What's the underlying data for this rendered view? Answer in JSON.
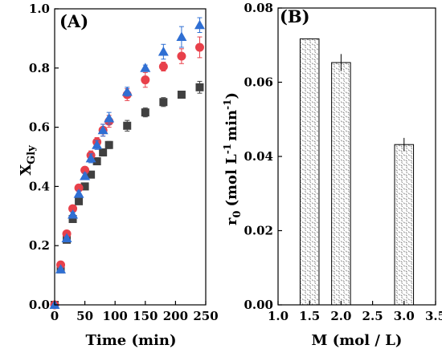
{
  "chart_data": [
    {
      "type": "scatter",
      "panel_label": "(A)",
      "title": "",
      "xlabel": "Time (min)",
      "ylabel": "X",
      "ylabel_subscript": "Gly",
      "xlim": [
        0,
        250
      ],
      "ylim": [
        0,
        1.0
      ],
      "x_ticks": [
        0,
        50,
        100,
        150,
        200,
        250
      ],
      "y_ticks": [
        0.0,
        0.2,
        0.4,
        0.6,
        0.8,
        1.0
      ],
      "x_tick_labels": [
        "0",
        "50",
        "100",
        "150",
        "200",
        "250"
      ],
      "y_tick_labels": [
        "0.0",
        "0.2",
        "0.4",
        "0.6",
        "0.8",
        "1.0"
      ],
      "grid": false,
      "legend": "none",
      "series": [
        {
          "marker": "square",
          "color": "#404040",
          "points": [
            {
              "x": 0,
              "y": 0.0,
              "err": 0.0
            },
            {
              "x": 10,
              "y": 0.12,
              "err": 0.005
            },
            {
              "x": 20,
              "y": 0.22,
              "err": 0.006
            },
            {
              "x": 30,
              "y": 0.29,
              "err": 0.008
            },
            {
              "x": 40,
              "y": 0.35,
              "err": 0.008
            },
            {
              "x": 50,
              "y": 0.4,
              "err": 0.01
            },
            {
              "x": 60,
              "y": 0.44,
              "err": 0.01
            },
            {
              "x": 70,
              "y": 0.485,
              "err": 0.01
            },
            {
              "x": 80,
              "y": 0.515,
              "err": 0.012
            },
            {
              "x": 90,
              "y": 0.54,
              "err": 0.012
            },
            {
              "x": 120,
              "y": 0.605,
              "err": 0.018
            },
            {
              "x": 150,
              "y": 0.65,
              "err": 0.015
            },
            {
              "x": 180,
              "y": 0.685,
              "err": 0.015
            },
            {
              "x": 210,
              "y": 0.71,
              "err": 0.01
            },
            {
              "x": 240,
              "y": 0.735,
              "err": 0.02
            }
          ]
        },
        {
          "marker": "circle",
          "color": "#e8404a",
          "points": [
            {
              "x": 0,
              "y": 0.0,
              "err": 0.0
            },
            {
              "x": 10,
              "y": 0.135,
              "err": 0.005
            },
            {
              "x": 20,
              "y": 0.24,
              "err": 0.006
            },
            {
              "x": 30,
              "y": 0.325,
              "err": 0.01
            },
            {
              "x": 40,
              "y": 0.395,
              "err": 0.01
            },
            {
              "x": 50,
              "y": 0.455,
              "err": 0.01
            },
            {
              "x": 60,
              "y": 0.505,
              "err": 0.015
            },
            {
              "x": 70,
              "y": 0.55,
              "err": 0.015
            },
            {
              "x": 80,
              "y": 0.59,
              "err": 0.02
            },
            {
              "x": 90,
              "y": 0.62,
              "err": 0.02
            },
            {
              "x": 120,
              "y": 0.71,
              "err": 0.02
            },
            {
              "x": 150,
              "y": 0.76,
              "err": 0.025
            },
            {
              "x": 180,
              "y": 0.805,
              "err": 0.015
            },
            {
              "x": 210,
              "y": 0.84,
              "err": 0.025
            },
            {
              "x": 240,
              "y": 0.87,
              "err": 0.035
            }
          ]
        },
        {
          "marker": "triangle",
          "color": "#2f6fd3",
          "points": [
            {
              "x": 0,
              "y": 0.0,
              "err": 0.0
            },
            {
              "x": 10,
              "y": 0.12,
              "err": 0.005
            },
            {
              "x": 20,
              "y": 0.225,
              "err": 0.006
            },
            {
              "x": 30,
              "y": 0.305,
              "err": 0.008
            },
            {
              "x": 40,
              "y": 0.375,
              "err": 0.01
            },
            {
              "x": 50,
              "y": 0.435,
              "err": 0.01
            },
            {
              "x": 60,
              "y": 0.495,
              "err": 0.015
            },
            {
              "x": 70,
              "y": 0.54,
              "err": 0.015
            },
            {
              "x": 80,
              "y": 0.59,
              "err": 0.02
            },
            {
              "x": 90,
              "y": 0.63,
              "err": 0.02
            },
            {
              "x": 120,
              "y": 0.72,
              "err": 0.015
            },
            {
              "x": 150,
              "y": 0.8,
              "err": 0.01
            },
            {
              "x": 180,
              "y": 0.855,
              "err": 0.025
            },
            {
              "x": 210,
              "y": 0.905,
              "err": 0.035
            },
            {
              "x": 240,
              "y": 0.945,
              "err": 0.025
            }
          ]
        }
      ]
    },
    {
      "type": "bar",
      "panel_label": "(B)",
      "title": "",
      "xlabel": "M (mol / L)",
      "ylabel": "r",
      "ylabel_subscript": "0",
      "ylabel_unit": "(mol L",
      "ylabel_unit_sup1": "-1",
      "ylabel_unit_mid": "min",
      "ylabel_unit_sup2": "-1",
      "ylabel_unit_end": ")",
      "xlim": [
        1.0,
        3.5
      ],
      "ylim": [
        0.0,
        0.08
      ],
      "x_ticks": [
        1.0,
        1.5,
        2.0,
        2.5,
        3.0,
        3.5
      ],
      "y_ticks": [
        0.0,
        0.02,
        0.04,
        0.06,
        0.08
      ],
      "x_tick_labels": [
        "1.0",
        "1.5",
        "2.0",
        "2.5",
        "3.0",
        "3.5"
      ],
      "y_tick_labels": [
        "0.00",
        "0.02",
        "0.04",
        "0.06",
        "0.08"
      ],
      "bar_width": 0.3,
      "fill": "hatched",
      "grid": false,
      "legend": "none",
      "bars": [
        {
          "x": 1.5,
          "value": 0.0717,
          "err": 0.0001
        },
        {
          "x": 2.0,
          "value": 0.0653,
          "err": 0.0023
        },
        {
          "x": 3.0,
          "value": 0.0432,
          "err": 0.0018
        }
      ]
    }
  ]
}
